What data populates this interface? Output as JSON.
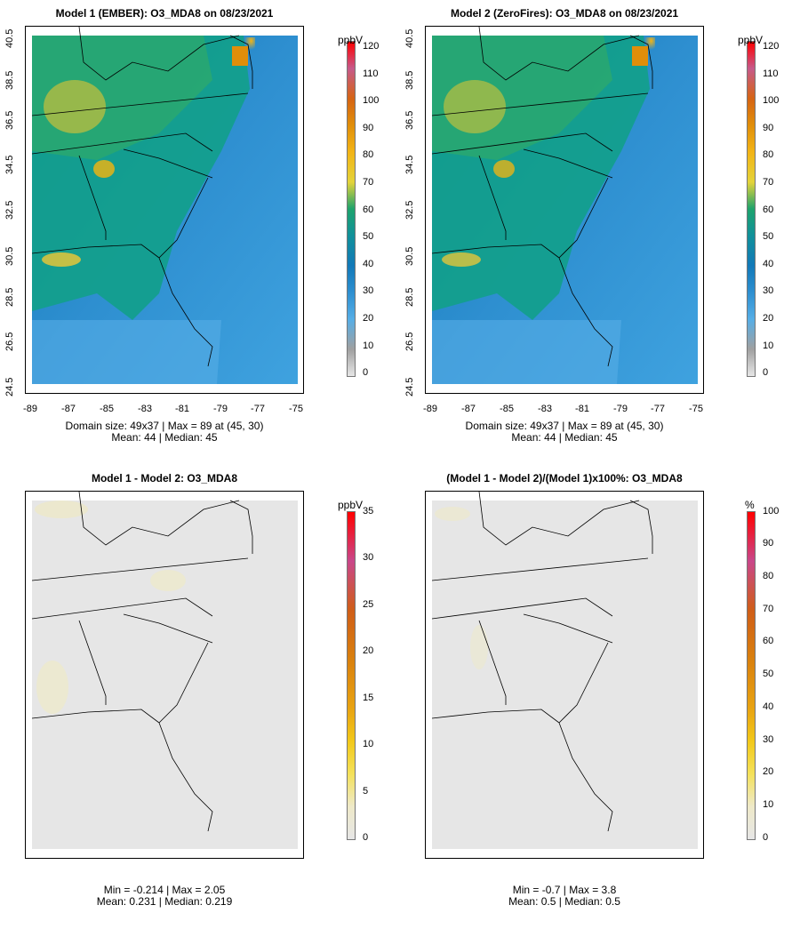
{
  "panels": [
    {
      "title": "Model 1 (EMBER): O3_MDA8 on 08/23/2021",
      "unit": "ppbV",
      "colorbar_ticks": [
        "120",
        "110",
        "100",
        "90",
        "80",
        "70",
        "60",
        "50",
        "40",
        "30",
        "20",
        "10",
        "0"
      ],
      "stats_line1": "Domain size: 49x37 | Max = 89 at (45, 30)",
      "stats_line2": "Mean: 44 |  Median: 45",
      "x_ticks": [
        "-89",
        "-87",
        "-85",
        "-83",
        "-81",
        "-79",
        "-77",
        "-75"
      ],
      "y_ticks": [
        "40.5",
        "38.5",
        "36.5",
        "34.5",
        "32.5",
        "30.5",
        "28.5",
        "26.5",
        "24.5"
      ]
    },
    {
      "title": "Model 2 (ZeroFires): O3_MDA8 on 08/23/2021",
      "unit": "ppbV",
      "colorbar_ticks": [
        "120",
        "110",
        "100",
        "90",
        "80",
        "70",
        "60",
        "50",
        "40",
        "30",
        "20",
        "10",
        "0"
      ],
      "stats_line1": "Domain size: 49x37 | Max = 89 at (45, 30)",
      "stats_line2": "Mean: 44 |  Median: 45",
      "x_ticks": [
        "-89",
        "-87",
        "-85",
        "-83",
        "-81",
        "-79",
        "-77",
        "-75"
      ],
      "y_ticks": [
        "40.5",
        "38.5",
        "36.5",
        "34.5",
        "32.5",
        "30.5",
        "28.5",
        "26.5",
        "24.5"
      ]
    },
    {
      "title": "Model 1 - Model 2: O3_MDA8",
      "unit": "ppbV",
      "colorbar_ticks": [
        "35",
        "30",
        "25",
        "20",
        "15",
        "10",
        "5",
        "0"
      ],
      "stats_line1": "Min = -0.214 | Max = 2.05",
      "stats_line2": "Mean: 0.231 |  Median: 0.219"
    },
    {
      "title": "(Model 1 - Model 2)/(Model 1)x100%: O3_MDA8",
      "unit": "%",
      "colorbar_ticks": [
        "100",
        "90",
        "80",
        "70",
        "60",
        "50",
        "40",
        "30",
        "20",
        "10",
        "0"
      ],
      "stats_line1": "Min = -0.7 | Max = 3.8",
      "stats_line2": "Mean: 0.5 |  Median: 0.5"
    }
  ],
  "chart_data": [
    {
      "type": "heatmap",
      "title": "Model 1 (EMBER): O3_MDA8 on 08/23/2021",
      "xlim": [
        -89,
        -75
      ],
      "ylim": [
        24.5,
        40.5
      ],
      "color_scale": {
        "unit": "ppbV",
        "min": 0,
        "max": 120
      },
      "grid_size": "49x37",
      "max": 89,
      "max_location": "(45, 30)",
      "mean": 44,
      "median": 45
    },
    {
      "type": "heatmap",
      "title": "Model 2 (ZeroFires): O3_MDA8 on 08/23/2021",
      "xlim": [
        -89,
        -75
      ],
      "ylim": [
        24.5,
        40.5
      ],
      "color_scale": {
        "unit": "ppbV",
        "min": 0,
        "max": 120
      },
      "grid_size": "49x37",
      "max": 89,
      "max_location": "(45, 30)",
      "mean": 44,
      "median": 45
    },
    {
      "type": "heatmap",
      "title": "Model 1 - Model 2: O3_MDA8",
      "color_scale": {
        "unit": "ppbV",
        "min": 0,
        "max": 35
      },
      "min": -0.214,
      "max": 2.05,
      "mean": 0.231,
      "median": 0.219
    },
    {
      "type": "heatmap",
      "title": "(Model 1 - Model 2)/(Model 1)x100%: O3_MDA8",
      "color_scale": {
        "unit": "%",
        "min": 0,
        "max": 100
      },
      "min": -0.7,
      "max": 3.8,
      "mean": 0.5,
      "median": 0.5
    }
  ],
  "colors": {
    "ozone_scale": [
      "#e6e6e6",
      "#a0a0a0",
      "#56aee6",
      "#2e8fd0",
      "#1279b8",
      "#11909a",
      "#1ea36c",
      "#6cbf50",
      "#e4d33a",
      "#f2b416",
      "#e08e0a",
      "#d56414",
      "#c65a8a",
      "#ff0000"
    ],
    "diff_scale": [
      "#e6e6e6",
      "#eee9c8",
      "#f4e15a",
      "#f2c81a",
      "#e8a312",
      "#d9800e",
      "#cf5e18",
      "#c9478a",
      "#ff0000"
    ],
    "ocean": "#3fa2df",
    "land_base": "#1b9a84",
    "diff_background": "#e6e6e6"
  }
}
